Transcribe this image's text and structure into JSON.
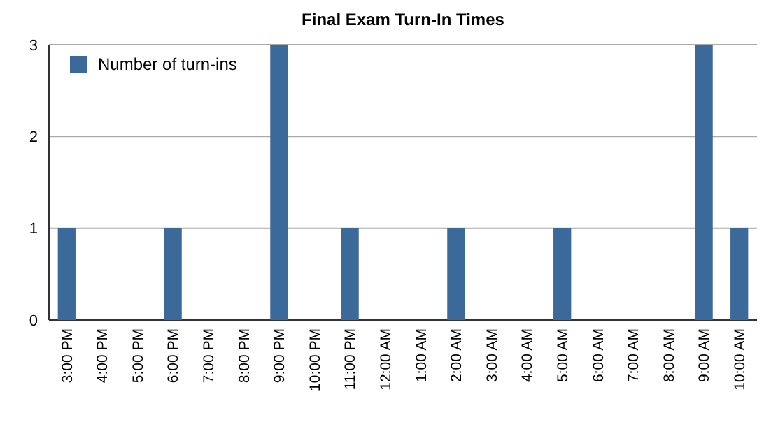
{
  "chart_data": {
    "type": "bar",
    "title": "Final Exam Turn-In Times",
    "categories": [
      "3:00 PM",
      "4:00 PM",
      "5:00 PM",
      "6:00 PM",
      "7:00 PM",
      "8:00 PM",
      "9:00 PM",
      "10:00 PM",
      "11:00 PM",
      "12:00 AM",
      "1:00 AM",
      "2:00 AM",
      "3:00 AM",
      "4:00 AM",
      "5:00 AM",
      "6:00 AM",
      "7:00 AM",
      "8:00 AM",
      "9:00 AM",
      "10:00 AM"
    ],
    "series": [
      {
        "name": "Number of turn-ins",
        "color": "#3b6999",
        "values": [
          1,
          0,
          0,
          1,
          0,
          0,
          3,
          0,
          1,
          0,
          0,
          1,
          0,
          0,
          1,
          0,
          0,
          0,
          3,
          1
        ]
      }
    ],
    "ylim": [
      0,
      3
    ],
    "yticks": [
      0,
      1,
      2,
      3
    ],
    "grid": "y",
    "legend": "top left"
  }
}
